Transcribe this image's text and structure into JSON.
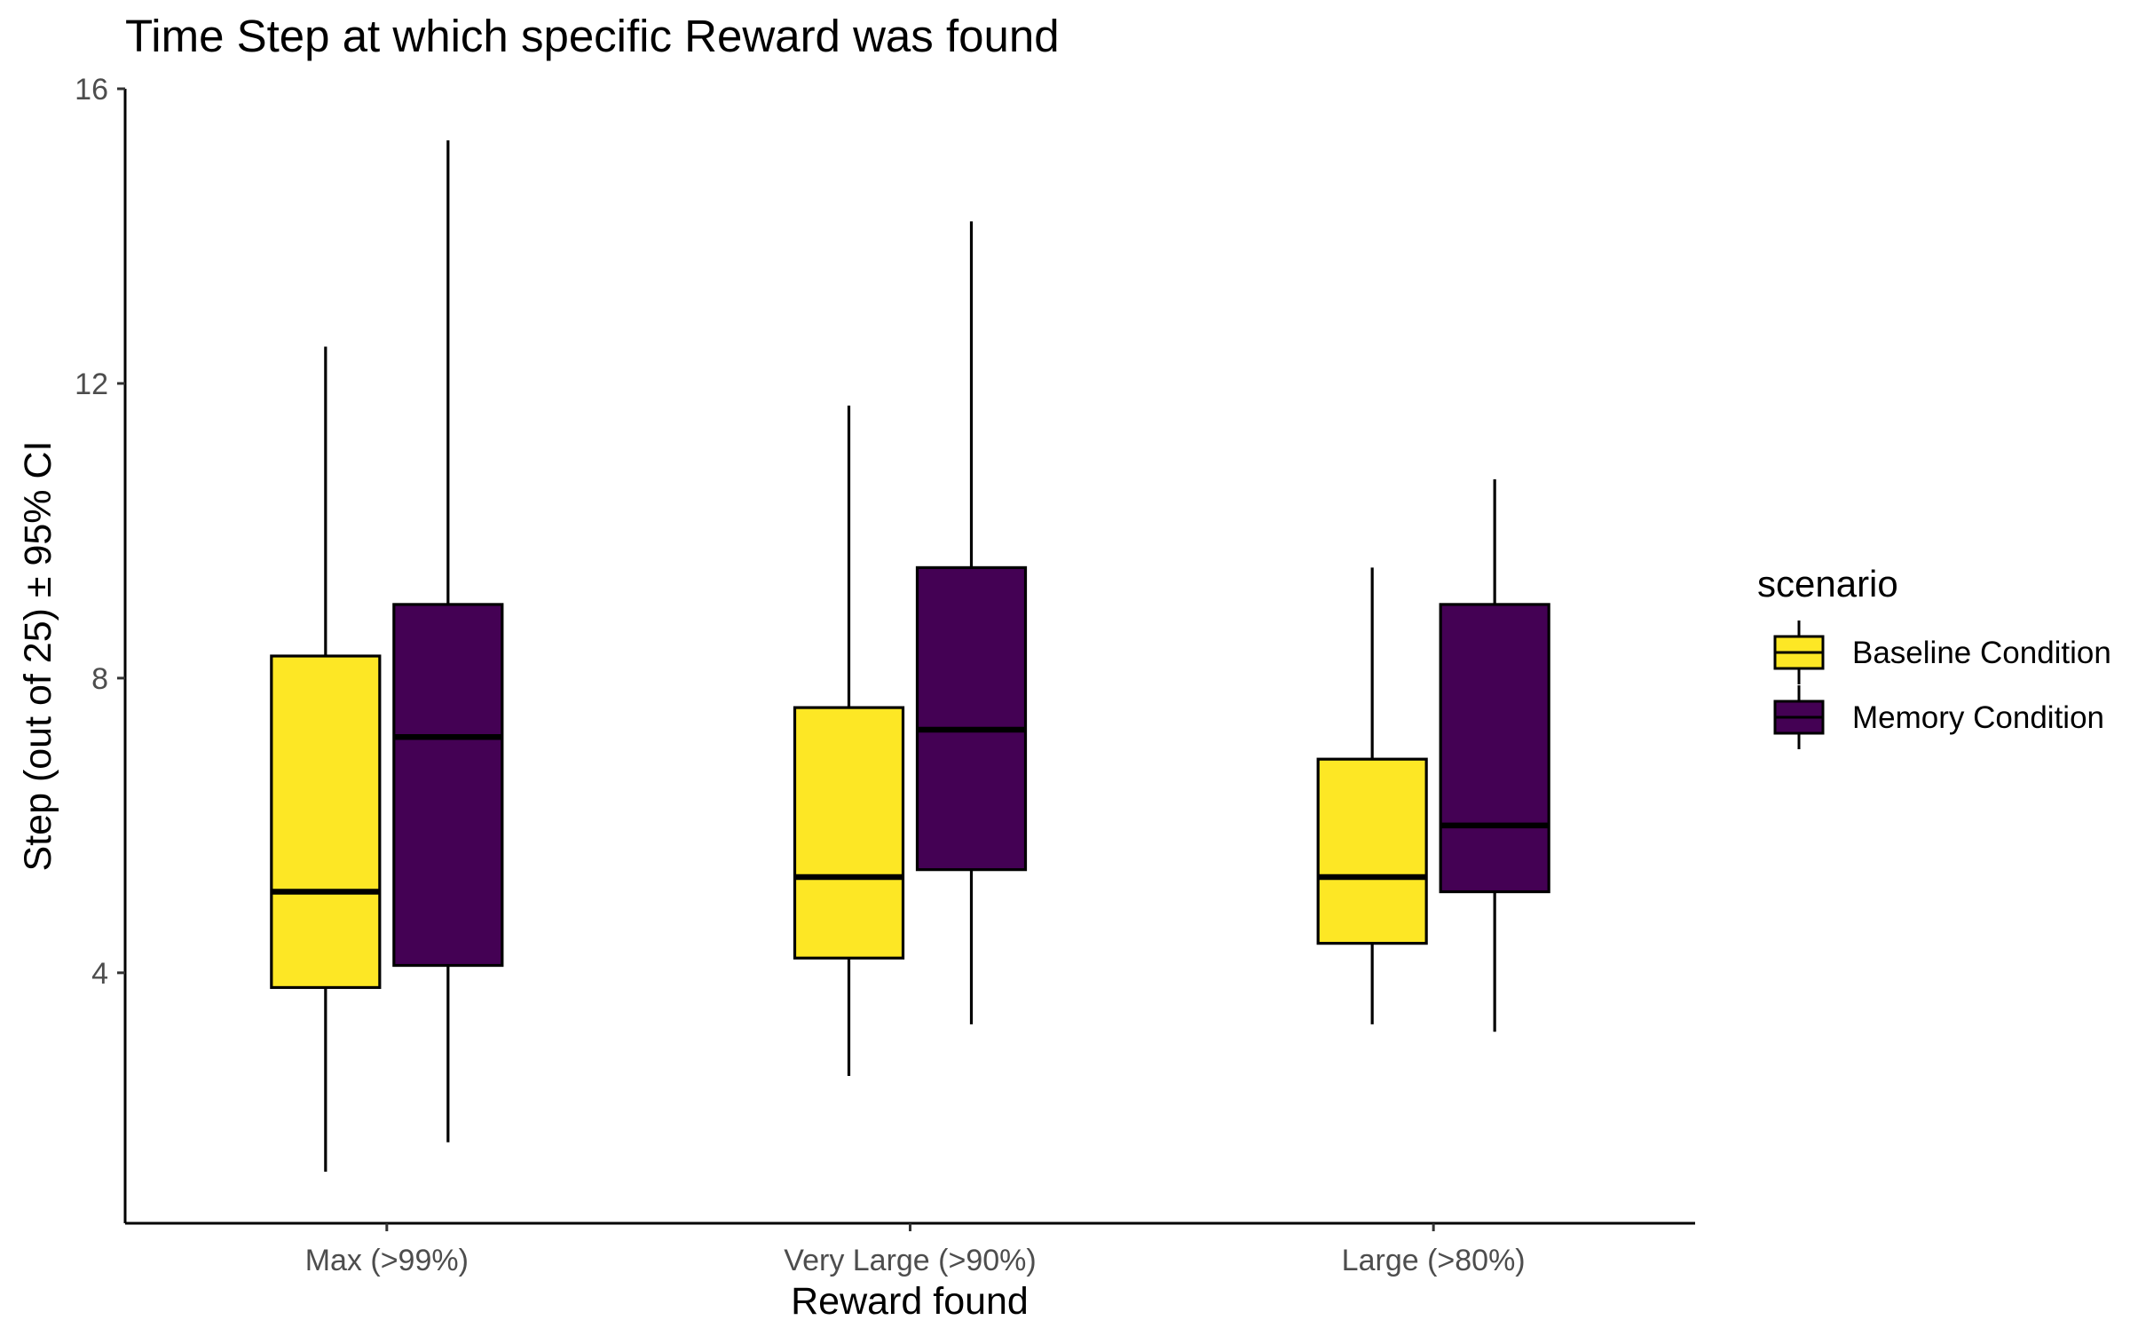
{
  "chart_data": {
    "type": "boxplot",
    "title": "Time Step at which specific Reward was found",
    "xlabel": "Reward found",
    "ylabel": "Step (out of 25) ± 95% CI",
    "ylim": [
      0.6,
      16
    ],
    "yticks": [
      4,
      8,
      12,
      16
    ],
    "categories": [
      "Max (>99%)",
      "Very Large (>90%)",
      "Large (>80%)"
    ],
    "grid": false,
    "legend": {
      "title": "scenario",
      "position": "right"
    },
    "series": [
      {
        "name": "Baseline Condition",
        "color": "#FDE725",
        "boxes": [
          {
            "category": "Max (>99%)",
            "whisker_low": 1.3,
            "q1": 3.8,
            "median": 5.1,
            "q3": 8.3,
            "whisker_high": 12.5
          },
          {
            "category": "Very Large (>90%)",
            "whisker_low": 2.6,
            "q1": 4.2,
            "median": 5.3,
            "q3": 7.6,
            "whisker_high": 11.7
          },
          {
            "category": "Large (>80%)",
            "whisker_low": 3.3,
            "q1": 4.4,
            "median": 5.3,
            "q3": 6.9,
            "whisker_high": 9.5
          }
        ]
      },
      {
        "name": "Memory Condition",
        "color": "#440154",
        "boxes": [
          {
            "category": "Max (>99%)",
            "whisker_low": 1.7,
            "q1": 4.1,
            "median": 7.2,
            "q3": 9.0,
            "whisker_high": 15.3
          },
          {
            "category": "Very Large (>90%)",
            "whisker_low": 3.3,
            "q1": 5.4,
            "median": 7.3,
            "q3": 9.5,
            "whisker_high": 14.2
          },
          {
            "category": "Large (>80%)",
            "whisker_low": 3.2,
            "q1": 5.1,
            "median": 6.0,
            "q3": 9.0,
            "whisker_high": 10.7
          }
        ]
      }
    ]
  }
}
